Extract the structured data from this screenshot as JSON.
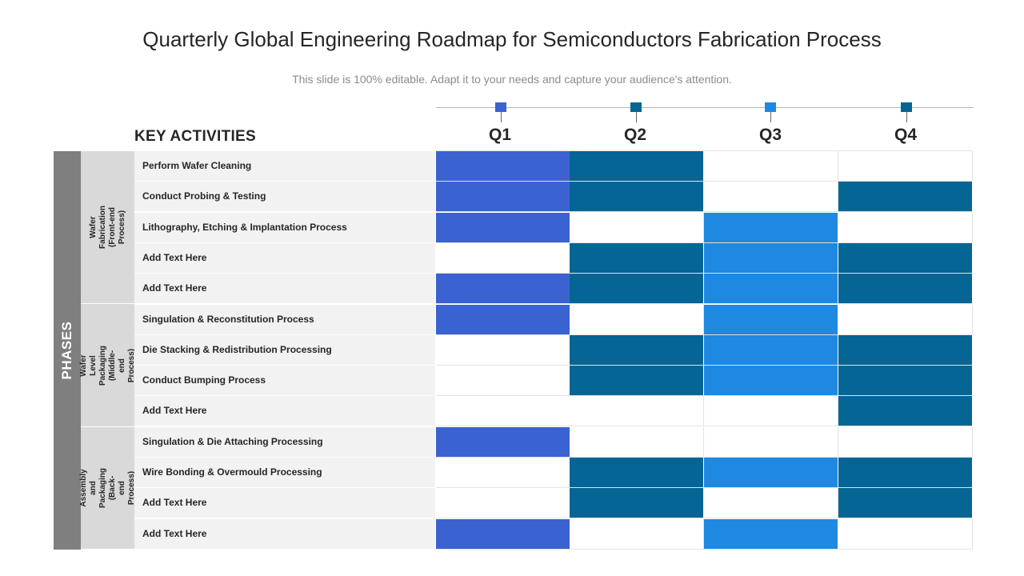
{
  "title": "Quarterly Global Engineering Roadmap for Semiconductors Fabrication Process",
  "subtitle": "This slide is 100% editable. Adapt it to your needs and capture your audience's attention.",
  "key_activities_label": "KEY ACTIVITIES",
  "phases_label": "PHASES",
  "colors": {
    "q1": "#3a63d1",
    "q2": "#056594",
    "q3": "#1f88e0",
    "q4": "#056594",
    "empty": "#ffffff"
  },
  "quarters": [
    "Q1",
    "Q2",
    "Q3",
    "Q4"
  ],
  "phase_groups": [
    {
      "label_line1": "Wafer Fabrication",
      "label_line2": "(Front-end Process)"
    },
    {
      "label_line1": "Wafer Level Packaging",
      "label_line2": "(Middle-end Process)"
    },
    {
      "label_line1": "Assembly and Packaging (Back-",
      "label_line2": "end Process)"
    }
  ],
  "activities": [
    {
      "label": "Perform Wafer Cleaning",
      "q": [
        1,
        1,
        0,
        0
      ]
    },
    {
      "label": "Conduct Probing & Testing",
      "q": [
        1,
        1,
        0,
        1
      ]
    },
    {
      "label": "Lithography, Etching & Implantation Process",
      "q": [
        1,
        0,
        1,
        0
      ]
    },
    {
      "label": "Add Text Here",
      "q": [
        0,
        1,
        1,
        1
      ]
    },
    {
      "label": "Add Text Here",
      "q": [
        1,
        1,
        1,
        1
      ]
    },
    {
      "label": "Singulation & Reconstitution Process",
      "q": [
        1,
        0,
        1,
        0
      ]
    },
    {
      "label": "Die Stacking & Redistribution Processing",
      "q": [
        0,
        1,
        1,
        1
      ]
    },
    {
      "label": "Conduct Bumping Process",
      "q": [
        0,
        1,
        1,
        1
      ]
    },
    {
      "label": "Add Text Here",
      "q": [
        0,
        0,
        0,
        1
      ]
    },
    {
      "label": "Singulation & Die Attaching Processing",
      "q": [
        1,
        0,
        0,
        0
      ]
    },
    {
      "label": "Wire Bonding & Overmould Processing",
      "q": [
        0,
        1,
        1,
        1
      ]
    },
    {
      "label": "Add Text Here",
      "q": [
        0,
        1,
        0,
        1
      ]
    },
    {
      "label": "Add Text Here",
      "q": [
        1,
        0,
        1,
        0
      ]
    }
  ]
}
